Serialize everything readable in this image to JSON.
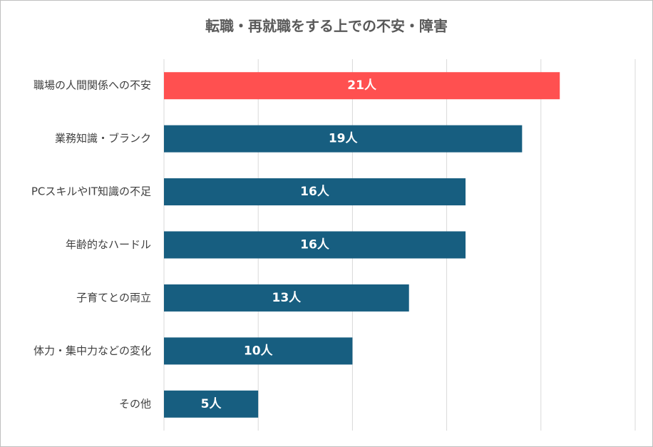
{
  "chart_data": {
    "type": "barh",
    "title": "転職・再就職をする上での不安・障害",
    "categories": [
      "職場の人間関係への不安",
      "業務知識・ブランク",
      "PCスキルやIT知識の不足",
      "年齢的なハードル",
      "子育てとの両立",
      "体力・集中力などの変化",
      "その他"
    ],
    "values": [
      21,
      19,
      16,
      16,
      13,
      10,
      5
    ],
    "value_labels": [
      "21人",
      "19人",
      "16人",
      "16人",
      "13人",
      "10人",
      "5人"
    ],
    "colors": [
      "#ff5050",
      "#175e80",
      "#175e80",
      "#175e80",
      "#175e80",
      "#175e80",
      "#175e80"
    ],
    "xlim": [
      0,
      25
    ],
    "xticks": [
      0,
      5,
      10,
      15,
      20,
      25
    ],
    "grid": true
  }
}
